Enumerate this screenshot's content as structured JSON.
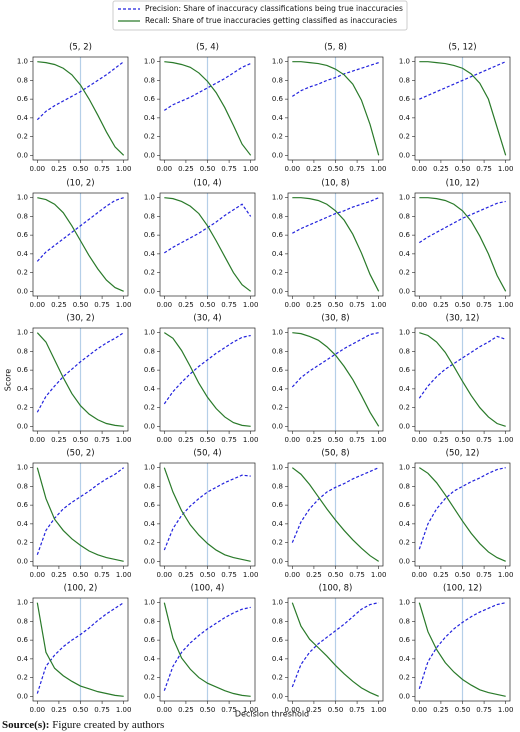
{
  "legend": [
    {
      "name": "Precision: Share of inaccuracy classifications being true inaccuracies",
      "color": "#2222dd",
      "dashed": true
    },
    {
      "name": "Recall: Share of true inaccuracies getting classified as inaccuracies",
      "color": "#2a7a2a",
      "dashed": false
    }
  ],
  "y_label": "Score",
  "x_label": "Decision threshold",
  "source": {
    "label": "Source(s):",
    "text": "Figure created by authors"
  },
  "threshold": {
    "value": 0.5,
    "color": "#b5cfe8"
  },
  "axes": {
    "x": [
      0,
      0.1,
      0.2,
      0.3,
      0.4,
      0.5,
      0.6,
      0.7,
      0.8,
      0.9,
      1.0
    ],
    "xlim": [
      -0.05,
      1.05
    ],
    "ylim": [
      -0.05,
      1.05
    ],
    "xticks": [
      {
        "value": 0,
        "label": "0.00"
      },
      {
        "value": 0.25,
        "label": "0.25"
      },
      {
        "value": 0.5,
        "label": "0.50"
      },
      {
        "value": 0.75,
        "label": "0.75"
      },
      {
        "value": 1,
        "label": "1.00"
      }
    ],
    "yticks": [
      {
        "value": 0,
        "label": "0.0"
      },
      0.2,
      0.4,
      0.6,
      0.8,
      {
        "value": 1,
        "label": "1.0"
      }
    ]
  },
  "chart_data": [
    {
      "type": "line",
      "title": "(5, 2)",
      "series": [
        {
          "values": [
            0.38,
            0.47,
            0.53,
            0.58,
            0.63,
            0.68,
            0.74,
            0.8,
            0.86,
            0.93,
            1.0
          ]
        },
        {
          "values": [
            1.0,
            0.99,
            0.97,
            0.93,
            0.86,
            0.75,
            0.6,
            0.43,
            0.25,
            0.09,
            0.0
          ]
        }
      ]
    },
    {
      "type": "line",
      "title": "(5, 4)",
      "series": [
        {
          "values": [
            0.48,
            0.54,
            0.58,
            0.62,
            0.67,
            0.72,
            0.77,
            0.82,
            0.88,
            0.94,
            0.98
          ]
        },
        {
          "values": [
            1.0,
            0.99,
            0.97,
            0.94,
            0.88,
            0.79,
            0.67,
            0.51,
            0.32,
            0.12,
            0.0
          ]
        }
      ]
    },
    {
      "type": "line",
      "title": "(5, 8)",
      "series": [
        {
          "values": [
            0.63,
            0.69,
            0.73,
            0.76,
            0.8,
            0.83,
            0.87,
            0.9,
            0.93,
            0.96,
            0.99
          ]
        },
        {
          "values": [
            1.0,
            1.0,
            0.99,
            0.98,
            0.96,
            0.92,
            0.86,
            0.76,
            0.59,
            0.33,
            0.0
          ]
        }
      ]
    },
    {
      "type": "line",
      "title": "(5, 12)",
      "series": [
        {
          "values": [
            0.6,
            0.64,
            0.68,
            0.72,
            0.76,
            0.8,
            0.84,
            0.88,
            0.92,
            0.96,
            1.0
          ]
        },
        {
          "values": [
            1.0,
            1.0,
            0.99,
            0.98,
            0.96,
            0.93,
            0.87,
            0.77,
            0.6,
            0.3,
            0.0
          ]
        }
      ]
    },
    {
      "type": "line",
      "title": "(10, 2)",
      "series": [
        {
          "values": [
            0.32,
            0.42,
            0.49,
            0.56,
            0.63,
            0.7,
            0.77,
            0.84,
            0.91,
            0.97,
            1.0
          ]
        },
        {
          "values": [
            1.0,
            0.98,
            0.93,
            0.84,
            0.7,
            0.54,
            0.38,
            0.24,
            0.12,
            0.04,
            0.0
          ]
        }
      ]
    },
    {
      "type": "line",
      "title": "(10, 4)",
      "series": [
        {
          "values": [
            0.41,
            0.47,
            0.52,
            0.57,
            0.62,
            0.68,
            0.74,
            0.81,
            0.87,
            0.93,
            0.8
          ]
        },
        {
          "values": [
            1.0,
            0.99,
            0.96,
            0.91,
            0.83,
            0.7,
            0.54,
            0.37,
            0.2,
            0.07,
            0.0
          ]
        }
      ]
    },
    {
      "type": "line",
      "title": "(10, 8)",
      "series": [
        {
          "values": [
            0.62,
            0.67,
            0.71,
            0.75,
            0.79,
            0.83,
            0.86,
            0.9,
            0.93,
            0.96,
            1.0
          ]
        },
        {
          "values": [
            1.0,
            1.0,
            0.99,
            0.97,
            0.93,
            0.86,
            0.76,
            0.61,
            0.41,
            0.18,
            0.0
          ]
        }
      ]
    },
    {
      "type": "line",
      "title": "(10, 12)",
      "series": [
        {
          "values": [
            0.52,
            0.58,
            0.63,
            0.68,
            0.73,
            0.78,
            0.82,
            0.86,
            0.9,
            0.94,
            0.96
          ]
        },
        {
          "values": [
            1.0,
            1.0,
            0.99,
            0.97,
            0.93,
            0.86,
            0.75,
            0.59,
            0.4,
            0.17,
            0.0
          ]
        }
      ]
    },
    {
      "type": "line",
      "title": "(30, 2)",
      "series": [
        {
          "values": [
            0.15,
            0.32,
            0.43,
            0.53,
            0.61,
            0.69,
            0.76,
            0.83,
            0.89,
            0.94,
            1.0
          ]
        },
        {
          "values": [
            1.0,
            0.9,
            0.71,
            0.52,
            0.35,
            0.22,
            0.13,
            0.07,
            0.03,
            0.01,
            0.0
          ]
        }
      ]
    },
    {
      "type": "line",
      "title": "(30, 4)",
      "series": [
        {
          "values": [
            0.24,
            0.37,
            0.47,
            0.56,
            0.64,
            0.71,
            0.78,
            0.84,
            0.9,
            0.95,
            0.97
          ]
        },
        {
          "values": [
            1.0,
            0.94,
            0.81,
            0.64,
            0.46,
            0.31,
            0.19,
            0.1,
            0.04,
            0.01,
            0.0
          ]
        }
      ]
    },
    {
      "type": "line",
      "title": "(30, 8)",
      "series": [
        {
          "values": [
            0.42,
            0.52,
            0.59,
            0.65,
            0.71,
            0.77,
            0.83,
            0.88,
            0.93,
            0.98,
            1.0
          ]
        },
        {
          "values": [
            1.0,
            0.99,
            0.96,
            0.92,
            0.85,
            0.76,
            0.64,
            0.5,
            0.33,
            0.15,
            0.0
          ]
        }
      ]
    },
    {
      "type": "line",
      "title": "(30, 12)",
      "series": [
        {
          "values": [
            0.3,
            0.43,
            0.53,
            0.61,
            0.67,
            0.73,
            0.79,
            0.85,
            0.9,
            0.96,
            0.93
          ]
        },
        {
          "values": [
            1.0,
            0.97,
            0.9,
            0.79,
            0.64,
            0.48,
            0.33,
            0.2,
            0.1,
            0.03,
            0.0
          ]
        }
      ]
    },
    {
      "type": "line",
      "title": "(50, 2)",
      "series": [
        {
          "values": [
            0.07,
            0.33,
            0.46,
            0.56,
            0.63,
            0.69,
            0.75,
            0.82,
            0.88,
            0.93,
            1.0
          ]
        },
        {
          "values": [
            1.0,
            0.67,
            0.45,
            0.33,
            0.24,
            0.17,
            0.11,
            0.07,
            0.04,
            0.02,
            0.0
          ]
        }
      ]
    },
    {
      "type": "line",
      "title": "(50, 4)",
      "series": [
        {
          "values": [
            0.12,
            0.35,
            0.49,
            0.59,
            0.67,
            0.74,
            0.79,
            0.84,
            0.88,
            0.92,
            0.91
          ]
        },
        {
          "values": [
            1.0,
            0.74,
            0.54,
            0.39,
            0.28,
            0.19,
            0.12,
            0.07,
            0.04,
            0.02,
            0.0
          ]
        }
      ]
    },
    {
      "type": "line",
      "title": "(50, 8)",
      "series": [
        {
          "values": [
            0.2,
            0.42,
            0.56,
            0.66,
            0.74,
            0.79,
            0.83,
            0.88,
            0.92,
            0.96,
            1.0
          ]
        },
        {
          "values": [
            1.0,
            0.93,
            0.82,
            0.69,
            0.56,
            0.44,
            0.33,
            0.23,
            0.14,
            0.06,
            0.0
          ]
        }
      ]
    },
    {
      "type": "line",
      "title": "(50, 12)",
      "series": [
        {
          "values": [
            0.13,
            0.4,
            0.56,
            0.67,
            0.75,
            0.8,
            0.85,
            0.89,
            0.94,
            0.98,
            1.0
          ]
        },
        {
          "values": [
            1.0,
            0.94,
            0.84,
            0.71,
            0.57,
            0.43,
            0.3,
            0.19,
            0.1,
            0.04,
            0.0
          ]
        }
      ]
    },
    {
      "type": "line",
      "title": "(100, 2)",
      "series": [
        {
          "values": [
            0.03,
            0.32,
            0.44,
            0.53,
            0.6,
            0.66,
            0.73,
            0.81,
            0.88,
            0.94,
            1.0
          ]
        },
        {
          "values": [
            1.0,
            0.47,
            0.3,
            0.22,
            0.16,
            0.11,
            0.08,
            0.05,
            0.03,
            0.01,
            0.0
          ]
        }
      ]
    },
    {
      "type": "line",
      "title": "(100, 4)",
      "series": [
        {
          "values": [
            0.06,
            0.32,
            0.47,
            0.57,
            0.65,
            0.72,
            0.78,
            0.84,
            0.89,
            0.93,
            0.95
          ]
        },
        {
          "values": [
            1.0,
            0.62,
            0.41,
            0.29,
            0.2,
            0.14,
            0.1,
            0.06,
            0.03,
            0.01,
            0.0
          ]
        }
      ]
    },
    {
      "type": "line",
      "title": "(100, 8)",
      "series": [
        {
          "values": [
            0.1,
            0.34,
            0.47,
            0.56,
            0.63,
            0.7,
            0.77,
            0.85,
            0.93,
            0.98,
            1.0
          ]
        },
        {
          "values": [
            1.0,
            0.75,
            0.61,
            0.52,
            0.43,
            0.33,
            0.24,
            0.16,
            0.09,
            0.04,
            0.0
          ]
        }
      ]
    },
    {
      "type": "line",
      "title": "(100, 12)",
      "series": [
        {
          "values": [
            0.08,
            0.37,
            0.52,
            0.63,
            0.72,
            0.79,
            0.85,
            0.9,
            0.94,
            0.98,
            1.0
          ]
        },
        {
          "values": [
            1.0,
            0.69,
            0.5,
            0.36,
            0.26,
            0.18,
            0.12,
            0.07,
            0.04,
            0.02,
            0.0
          ]
        }
      ]
    }
  ]
}
